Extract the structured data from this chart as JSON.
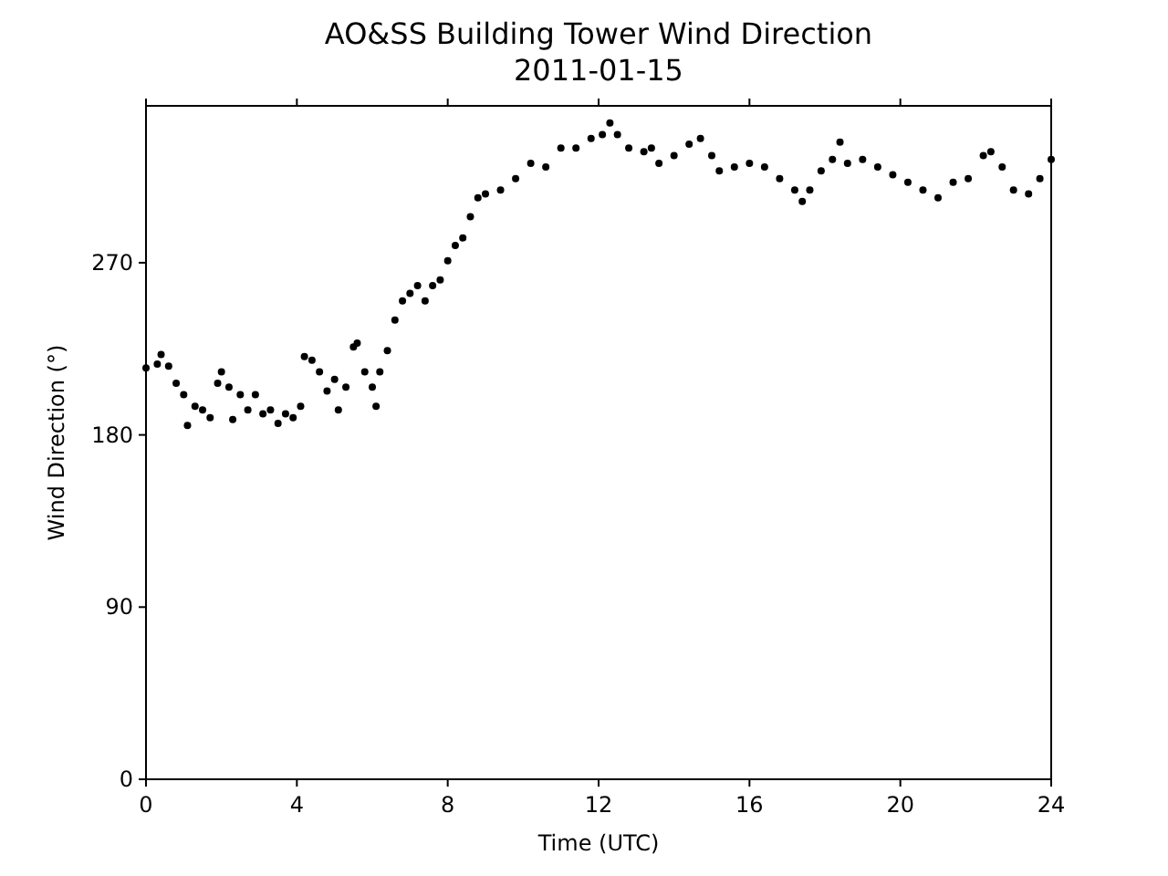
{
  "chart_data": {
    "type": "scatter",
    "title": "AO&SS Building Tower Wind Direction",
    "subtitle": "2011-01-15",
    "xlabel": "Time (UTC)",
    "ylabel": "Wind Direction (°)",
    "xlim": [
      0,
      24
    ],
    "xticks": [
      0,
      4,
      8,
      12,
      16,
      20,
      24
    ],
    "ylim": [
      0,
      352
    ],
    "yticks": [
      0,
      90,
      180,
      270
    ],
    "marker": "circle",
    "grid": false,
    "series": [
      {
        "color": "#000000",
        "x": [
          0,
          0.3,
          0.4,
          0.6,
          0.8,
          1.0,
          1.1,
          1.3,
          1.5,
          1.7,
          1.9,
          2.0,
          2.2,
          2.3,
          2.5,
          2.7,
          2.9,
          3.1,
          3.3,
          3.5,
          3.7,
          3.9,
          4.1,
          4.2,
          4.4,
          4.6,
          4.8,
          5.0,
          5.1,
          5.3,
          5.5,
          5.6,
          5.8,
          6.0,
          6.1,
          6.2,
          6.4,
          6.6,
          6.8,
          7.0,
          7.2,
          7.4,
          7.6,
          7.8,
          8.0,
          8.2,
          8.4,
          8.6,
          8.8,
          9.0,
          9.4,
          9.8,
          10.2,
          10.6,
          11.0,
          11.4,
          11.8,
          12.1,
          12.3,
          12.5,
          12.8,
          13.2,
          13.4,
          13.6,
          14.0,
          14.4,
          14.7,
          15.0,
          15.2,
          15.6,
          16.0,
          16.4,
          16.8,
          17.2,
          17.4,
          17.6,
          17.9,
          18.2,
          18.4,
          18.6,
          19.0,
          19.4,
          19.8,
          20.2,
          20.6,
          21.0,
          21.4,
          21.8,
          22.2,
          22.4,
          22.7,
          23.0,
          23.4,
          23.7,
          24.0
        ],
        "values": [
          215,
          217,
          222,
          216,
          207,
          201,
          185,
          195,
          193,
          189,
          207,
          213,
          205,
          188,
          201,
          193,
          201,
          191,
          193,
          186,
          191,
          189,
          195,
          221,
          219,
          213,
          203,
          209,
          193,
          205,
          226,
          228,
          213,
          205,
          195,
          213,
          224,
          240,
          250,
          254,
          258,
          250,
          258,
          261,
          271,
          279,
          283,
          294,
          304,
          306,
          308,
          314,
          322,
          320,
          330,
          330,
          335,
          337,
          343,
          337,
          330,
          328,
          330,
          322,
          326,
          332,
          335,
          326,
          318,
          320,
          322,
          320,
          314,
          308,
          302,
          308,
          318,
          324,
          333,
          322,
          324,
          320,
          316,
          312,
          308,
          304,
          312,
          314,
          326,
          328,
          320,
          308,
          306,
          314,
          324
        ]
      }
    ]
  }
}
